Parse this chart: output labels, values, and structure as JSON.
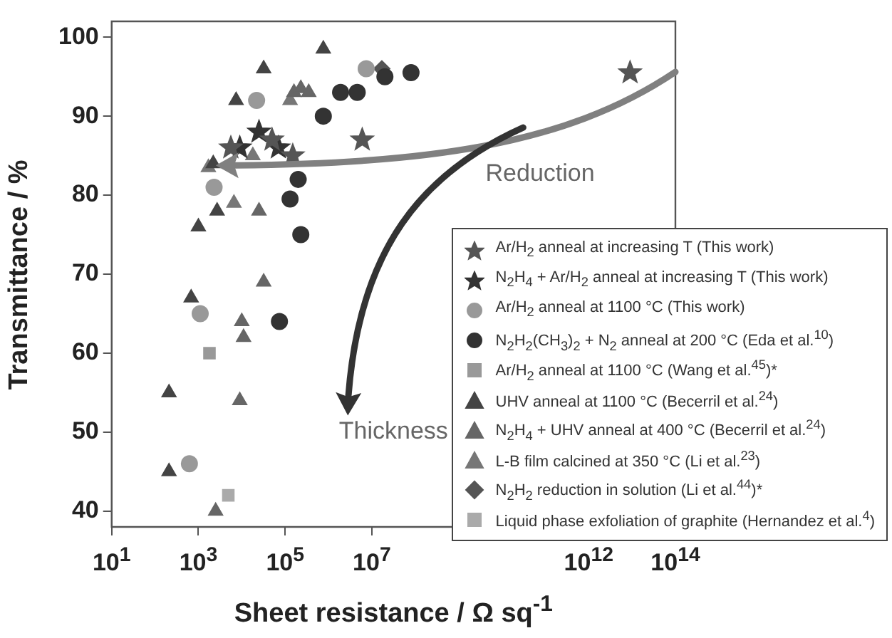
{
  "chart_data": {
    "type": "scatter",
    "xlabel": "Sheet resistance / Ω sq$^{-1}$",
    "ylabel": "Transmittance / %",
    "log": "x",
    "grid": false,
    "legend": "bottom right",
    "xlim": [
      10,
      100000000000000
    ],
    "xticks": [
      {
        "value": 10,
        "label": "10$^{1}$"
      },
      {
        "value": 1000,
        "label": "10$^{3}$"
      },
      {
        "value": 100000,
        "label": "10$^{5}$"
      },
      {
        "value": 10000000,
        "label": "10$^{7}$"
      },
      {
        "value": 1000000000000,
        "label": "10$^{12}$"
      },
      {
        "value": 100000000000000,
        "label": "10$^{14}$"
      }
    ],
    "ylim": [
      38,
      102
    ],
    "yticks": [
      40,
      50,
      60,
      70,
      80,
      90,
      100
    ],
    "annotations": [
      "Reduction",
      "Thickness"
    ],
    "series": [
      {
        "name": "Ar/H$_{2}$ anneal at increasing T (This work)",
        "marker": "star",
        "color": "#555555",
        "x": [
          5600,
          50000,
          150000,
          6000000,
          9000000000000
        ],
        "values": [
          86,
          87,
          85,
          87,
          95.5
        ]
      },
      {
        "name": "N$_{2}$H$_{4}$ + Ar/H$_{2}$ anneal at increasing T (This work)",
        "marker": "star",
        "color": "#333333",
        "x": [
          9000,
          25000,
          70000
        ],
        "values": [
          86,
          88,
          86
        ]
      },
      {
        "name": "Ar/H$_{2}$ anneal at 1100 °C (This work)",
        "marker": "circle",
        "color": "#999999",
        "x": [
          620,
          1100,
          2300,
          22000,
          7400000
        ],
        "values": [
          46,
          65,
          81,
          92,
          96
        ]
      },
      {
        "name": "N$_{2}$H$_{2}$(CH$_{3}$)$_{2}$ + N$_{2}$ anneal at 200 °C (Eda et al.$^{10}$)",
        "marker": "circle",
        "color": "#333333",
        "x": [
          74000,
          230000,
          130000,
          200000,
          760000,
          1900000,
          4600000,
          20000000,
          80000000
        ],
        "values": [
          64,
          75,
          79.5,
          82,
          90,
          93,
          93,
          95,
          95.5
        ]
      },
      {
        "name": "Ar/H$_{2}$ anneal at 1100 °C (Wang et al.$^{45}$)*",
        "marker": "square",
        "color": "#999999",
        "x": [
          1800
        ],
        "values": [
          60
        ]
      },
      {
        "name": "UHV anneal at 1100 °C (Becerril et al.$^{24}$)",
        "marker": "triangle",
        "color": "#444444",
        "x": [
          210,
          210,
          680,
          1000,
          2700,
          2200,
          7400,
          32000,
          760000
        ],
        "values": [
          45,
          55,
          67,
          76,
          78,
          84,
          92,
          96,
          98.5
        ]
      },
      {
        "name": "N$_{2}$H$_{4}$ + UHV anneal at 400 °C (Becerril et al.$^{24}$)",
        "marker": "triangle",
        "color": "#666666",
        "x": [
          2500,
          9000,
          11000,
          10000,
          32000,
          25000,
          160000,
          230000,
          350000
        ],
        "values": [
          40,
          54,
          62,
          64,
          69,
          78,
          93,
          93.5,
          93
        ]
      },
      {
        "name": "L-B film calcined at 350 °C (Li et al.$^{23}$)",
        "marker": "triangle",
        "color": "#777777",
        "x": [
          1700,
          6600,
          18000,
          130000
        ],
        "values": [
          83.5,
          79,
          85,
          92
        ]
      },
      {
        "name": "N$_{2}$H$_{2}$ reduction in solution (Li et al.$^{44}$)*",
        "marker": "diamond",
        "color": "#555555",
        "x": [
          17000000
        ],
        "values": [
          96
        ]
      },
      {
        "name": "Liquid phase exfoliation of graphite (Hernandez et al.$^{4}$)",
        "marker": "square",
        "color": "#aaaaaa",
        "x": [
          4900
        ],
        "values": [
          42
        ]
      }
    ]
  }
}
